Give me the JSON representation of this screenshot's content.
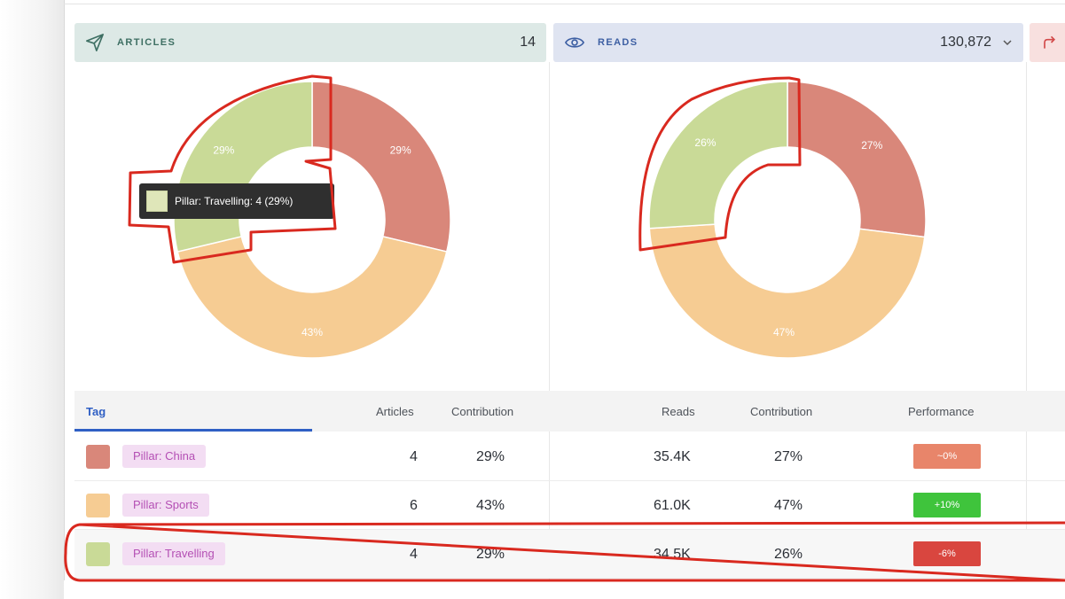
{
  "panels": {
    "articles": {
      "label": "ARTICLES",
      "value": "14",
      "icon": "paper-plane-icon"
    },
    "reads": {
      "label": "READS",
      "value": "130,872",
      "icon": "eye-icon",
      "dropdown_icon": "chevron-down-icon"
    },
    "shares": {
      "icon": "share-arrow-icon"
    }
  },
  "chart_data": [
    {
      "type": "pie",
      "categories": [
        "Pillar: China",
        "Pillar: Sports",
        "Pillar: Travelling"
      ],
      "values": [
        29,
        43,
        29
      ],
      "labels": [
        "29%",
        "43%",
        "29%"
      ],
      "colors": [
        "#d9877a",
        "#f6cc93",
        "#c9da97"
      ]
    },
    {
      "type": "pie",
      "categories": [
        "Pillar: China",
        "Pillar: Sports",
        "Pillar: Travelling"
      ],
      "values": [
        27,
        47,
        26
      ],
      "labels": [
        "27%",
        "47%",
        "26%"
      ],
      "colors": [
        "#d9877a",
        "#f6cc93",
        "#c9da97"
      ]
    }
  ],
  "tooltip": {
    "text": "Pillar: Travelling: 4 (29%)"
  },
  "table": {
    "headers": {
      "tag": "Tag",
      "articles": "Articles",
      "contribution1": "Contribution",
      "reads": "Reads",
      "contribution2": "Contribution",
      "performance": "Performance"
    },
    "rows": [
      {
        "tag": "Pillar: China",
        "color": "#d9877a",
        "articles": "4",
        "contribution1": "29%",
        "reads": "35.4K",
        "contribution2": "27%",
        "performance": "~0%",
        "perf_color": "#e8856a"
      },
      {
        "tag": "Pillar: Sports",
        "color": "#f6cc93",
        "articles": "6",
        "contribution1": "43%",
        "reads": "61.0K",
        "contribution2": "47%",
        "performance": "+10%",
        "perf_color": "#3fc43c"
      },
      {
        "tag": "Pillar: Travelling",
        "color": "#c9da97",
        "articles": "4",
        "contribution1": "29%",
        "reads": "34.5K",
        "contribution2": "26%",
        "performance": "-6%",
        "perf_color": "#d9463f"
      }
    ]
  }
}
